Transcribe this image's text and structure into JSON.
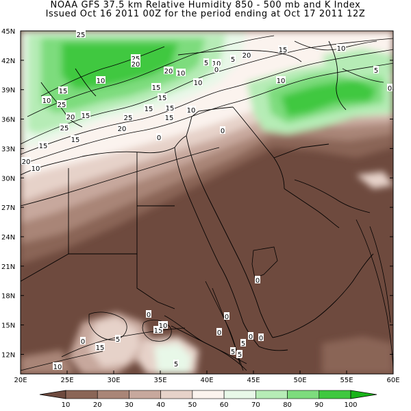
{
  "header": {
    "line1": "NOAA GFS 37.5 km Relative Humidity 850 - 500 mb and K Index",
    "line2": "Issued Oct 16 2011 00Z for the period ending at Oct 17 2011 12Z"
  },
  "lat_labels": [
    "45N",
    "42N",
    "39N",
    "36N",
    "33N",
    "30N",
    "27N",
    "24N",
    "21N",
    "18N",
    "15N",
    "12N"
  ],
  "lon_labels": [
    "20E",
    "25E",
    "30E",
    "35E",
    "40E",
    "45E",
    "50E",
    "55E",
    "60E"
  ],
  "colorbar": {
    "labels": [
      "10",
      "20",
      "30",
      "40",
      "50",
      "60",
      "70",
      "80",
      "90",
      "100"
    ],
    "colors": [
      "#6e4a3e",
      "#8a6556",
      "#a98577",
      "#c7a89d",
      "#e6d2c9",
      "#fbf3ee",
      "#e8f8e8",
      "#b6ecb6",
      "#7ddc7d",
      "#3fc83f",
      "#19b419"
    ]
  },
  "contour_labels": [
    {
      "t": "25"
    },
    {
      "t": "15"
    },
    {
      "t": "10"
    },
    {
      "t": "25"
    },
    {
      "t": "20"
    },
    {
      "t": "15"
    },
    {
      "t": "10"
    },
    {
      "t": "5"
    },
    {
      "t": "20"
    },
    {
      "t": "10"
    },
    {
      "t": "10"
    },
    {
      "t": "0"
    },
    {
      "t": "5"
    },
    {
      "t": "20"
    },
    {
      "t": "15"
    },
    {
      "t": "10"
    },
    {
      "t": "5"
    },
    {
      "t": "0"
    },
    {
      "t": "15"
    },
    {
      "t": "10"
    },
    {
      "t": "25"
    },
    {
      "t": "10"
    },
    {
      "t": "15"
    },
    {
      "t": "15"
    },
    {
      "t": "25"
    },
    {
      "t": "15"
    },
    {
      "t": "20"
    },
    {
      "t": "15"
    },
    {
      "t": "15"
    },
    {
      "t": "25"
    },
    {
      "t": "20"
    },
    {
      "t": "15"
    },
    {
      "t": "0"
    },
    {
      "t": "10"
    },
    {
      "t": "20"
    },
    {
      "t": "10"
    },
    {
      "t": "0"
    },
    {
      "t": "0"
    },
    {
      "t": "0"
    },
    {
      "t": "0"
    },
    {
      "t": "10"
    },
    {
      "t": "15"
    },
    {
      "t": "0"
    },
    {
      "t": "15"
    },
    {
      "t": "5"
    },
    {
      "t": "10"
    },
    {
      "t": "0"
    },
    {
      "t": "0"
    },
    {
      "t": "5"
    },
    {
      "t": "0"
    },
    {
      "t": "5"
    },
    {
      "t": "5"
    },
    {
      "t": "0"
    },
    {
      "t": "10"
    },
    {
      "t": "5"
    }
  ]
}
